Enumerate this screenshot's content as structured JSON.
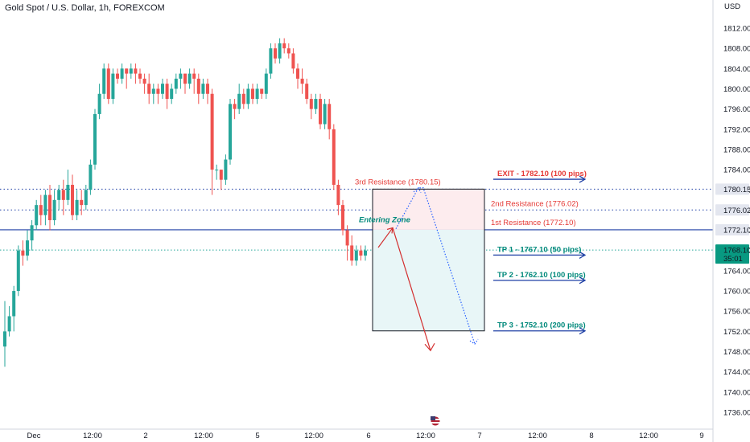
{
  "header": {
    "title": "Gold Spot / U.S. Dollar, 1h, FOREXCOM"
  },
  "colors": {
    "up": "#26a69a",
    "down": "#ef5350",
    "resistance": "#1e3fa5",
    "entry_line": "#d32f2f",
    "label_red": "#e53935",
    "label_teal": "#00897b",
    "current_price_bg": "#089981"
  },
  "chart_data": {
    "type": "candlestick",
    "title": "Gold Spot / U.S. Dollar, 1h, FOREXCOM",
    "ylabel": "USD",
    "ylim": [
      1736,
      1815
    ],
    "y_ticks": [
      "1812.00",
      "1808.00",
      "1804.00",
      "1800.00",
      "1796.00",
      "1792.00",
      "1788.00",
      "1784.00",
      "1780.00",
      "1776.00",
      "1772.00",
      "1768.00",
      "1764.00",
      "1760.00",
      "1756.00",
      "1752.00",
      "1748.00",
      "1744.00",
      "1740.00",
      "1736.00"
    ],
    "x_ticks": [
      "Dec",
      "12:00",
      "2",
      "12:00",
      "5",
      "12:00",
      "6",
      "12:00",
      "7",
      "12:00",
      "8",
      "12:00",
      "9"
    ],
    "grid": false,
    "candles": [
      [
        1749,
        1752,
        1745,
        1758
      ],
      [
        1752,
        1755,
        1751,
        1757
      ],
      [
        1755,
        1760,
        1752,
        1761
      ],
      [
        1760,
        1768,
        1759,
        1769
      ],
      [
        1768,
        1767,
        1765,
        1770
      ],
      [
        1767,
        1770,
        1766,
        1772
      ],
      [
        1770,
        1773,
        1768,
        1774
      ],
      [
        1773,
        1777,
        1772,
        1778
      ],
      [
        1777,
        1775,
        1773,
        1779
      ],
      [
        1775,
        1779,
        1773,
        1780
      ],
      [
        1779,
        1774,
        1772,
        1781
      ],
      [
        1774,
        1778,
        1773,
        1780
      ],
      [
        1778,
        1780,
        1776,
        1781
      ],
      [
        1780,
        1778,
        1775,
        1782
      ],
      [
        1778,
        1781,
        1777,
        1784
      ],
      [
        1781,
        1775,
        1774,
        1783
      ],
      [
        1775,
        1778,
        1774,
        1780
      ],
      [
        1778,
        1777,
        1775,
        1780
      ],
      [
        1777,
        1780,
        1776,
        1781
      ],
      [
        1780,
        1785,
        1779,
        1786
      ],
      [
        1785,
        1795,
        1784,
        1796
      ],
      [
        1795,
        1799,
        1794,
        1801
      ],
      [
        1799,
        1804,
        1798,
        1805
      ],
      [
        1804,
        1798,
        1797,
        1805
      ],
      [
        1798,
        1803,
        1797,
        1804
      ],
      [
        1803,
        1802,
        1801,
        1804
      ],
      [
        1802,
        1804,
        1801,
        1805
      ],
      [
        1804,
        1803,
        1800,
        1804
      ],
      [
        1803,
        1804,
        1802,
        1805
      ],
      [
        1804,
        1803,
        1801,
        1805
      ],
      [
        1803,
        1802,
        1801,
        1804
      ],
      [
        1802,
        1801,
        1799,
        1803
      ],
      [
        1801,
        1799,
        1797,
        1803
      ],
      [
        1799,
        1800,
        1797,
        1801
      ],
      [
        1800,
        1799,
        1797,
        1801
      ],
      [
        1799,
        1801,
        1798,
        1802
      ],
      [
        1801,
        1798,
        1796,
        1802
      ],
      [
        1798,
        1800,
        1797,
        1801
      ],
      [
        1800,
        1802,
        1799,
        1803
      ],
      [
        1802,
        1803,
        1800,
        1804
      ],
      [
        1803,
        1801,
        1799,
        1803
      ],
      [
        1801,
        1803,
        1800,
        1804
      ],
      [
        1803,
        1802,
        1799,
        1804
      ],
      [
        1802,
        1799,
        1797,
        1803
      ],
      [
        1799,
        1801,
        1798,
        1802
      ],
      [
        1801,
        1799,
        1797,
        1802
      ],
      [
        1799,
        1784,
        1779,
        1800
      ],
      [
        1784,
        1784,
        1782,
        1785
      ],
      [
        1784,
        1782,
        1780,
        1784
      ],
      [
        1782,
        1786,
        1781,
        1787
      ],
      [
        1786,
        1797,
        1785,
        1798
      ],
      [
        1797,
        1796,
        1794,
        1798
      ],
      [
        1796,
        1799,
        1795,
        1801
      ],
      [
        1799,
        1797,
        1796,
        1800
      ],
      [
        1797,
        1800,
        1796,
        1801
      ],
      [
        1800,
        1798,
        1797,
        1801
      ],
      [
        1798,
        1800,
        1797,
        1801
      ],
      [
        1800,
        1799,
        1798,
        1800
      ],
      [
        1799,
        1803,
        1798,
        1804
      ],
      [
        1803,
        1808,
        1802,
        1809
      ],
      [
        1808,
        1806,
        1805,
        1809
      ],
      [
        1806,
        1809,
        1805,
        1810
      ],
      [
        1809,
        1808,
        1807,
        1810
      ],
      [
        1808,
        1807,
        1806,
        1809
      ],
      [
        1807,
        1804,
        1803,
        1808
      ],
      [
        1804,
        1802,
        1800,
        1805
      ],
      [
        1802,
        1801,
        1799,
        1804
      ],
      [
        1801,
        1798,
        1797,
        1802
      ],
      [
        1798,
        1796,
        1794,
        1799
      ],
      [
        1796,
        1798,
        1795,
        1799
      ],
      [
        1798,
        1793,
        1792,
        1799
      ],
      [
        1793,
        1797,
        1792,
        1798
      ],
      [
        1797,
        1792,
        1790,
        1798
      ],
      [
        1792,
        1781,
        1780,
        1793
      ],
      [
        1781,
        1777,
        1775,
        1782
      ],
      [
        1777,
        1772,
        1771,
        1778
      ],
      [
        1772,
        1769,
        1766,
        1773
      ],
      [
        1769,
        1766,
        1765,
        1771
      ],
      [
        1766,
        1768,
        1765,
        1769
      ],
      [
        1768,
        1767,
        1766,
        1769
      ],
      [
        1767,
        1768,
        1766,
        1769
      ]
    ],
    "levels": [
      {
        "name": "EXIT",
        "label": "EXIT - 1782.10 (100 pips)",
        "value": 1782.1
      },
      {
        "name": "3rd Resistance",
        "label": "3rd Resistance (1780.15)",
        "value": 1780.15,
        "badge": "1780.15"
      },
      {
        "name": "2nd Resistance",
        "label": "2nd Resistance (1776.02)",
        "value": 1776.02,
        "badge": "1776.02"
      },
      {
        "name": "1st Resistance",
        "label": "1st Resistance (1772.10)",
        "value": 1772.1,
        "badge": "1772.10"
      },
      {
        "name": "TP 1",
        "label": "TP 1 - 1767.10 (50 pips)",
        "value": 1767.1
      },
      {
        "name": "TP 2",
        "label": "TP 2 - 1762.10 (100 pips)",
        "value": 1762.1
      },
      {
        "name": "TP 3",
        "label": "TP 3 - 1752.10 (200 pips)",
        "value": 1752.1
      }
    ],
    "current_price": {
      "value": 1768.1,
      "label": "1768.10",
      "countdown": "35:01"
    },
    "annotations": {
      "entering_zone": "Entering Zone"
    }
  }
}
